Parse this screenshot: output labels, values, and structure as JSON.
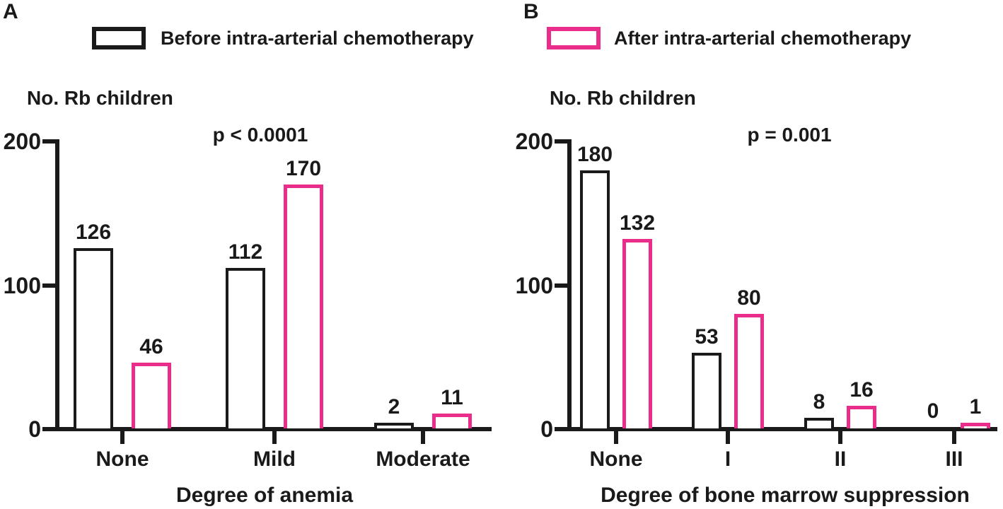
{
  "legend": {
    "items": [
      {
        "label": "Before intra-arterial chemotherapy",
        "color": "#1a1a1a",
        "swatch": "outlined-box"
      },
      {
        "label": "After intra-arterial chemotherapy",
        "color": "#ea2c8a",
        "swatch": "outlined-box"
      }
    ]
  },
  "colors": {
    "before_outline": "#1a1a1a",
    "after_outline": "#ea2c8a",
    "axis": "#1a1a1a",
    "text": "#1a1a1a",
    "background": "#ffffff"
  },
  "chart_data": [
    {
      "type": "bar",
      "panel": "A",
      "ylabel": "No. Rb children",
      "annotation": "p < 0.0001",
      "xlabel": "Degree of anemia",
      "categories": [
        "None",
        "Mild",
        "Moderate"
      ],
      "series": [
        {
          "name": "Before intra-arterial chemotherapy",
          "color": "#1a1a1a",
          "values": [
            126,
            112,
            2
          ]
        },
        {
          "name": "After intra-arterial chemotherapy",
          "color": "#ea2c8a",
          "values": [
            46,
            170,
            11
          ]
        }
      ],
      "ylim": [
        0,
        200
      ],
      "yticks": [
        0,
        100,
        200
      ],
      "grid": false,
      "bar_style": "outline",
      "legend_position": "top"
    },
    {
      "type": "bar",
      "panel": "B",
      "ylabel": "No. Rb children",
      "annotation": "p = 0.001",
      "xlabel": "Degree of bone marrow suppression",
      "categories": [
        "None",
        "I",
        "II",
        "III"
      ],
      "series": [
        {
          "name": "Before intra-arterial chemotherapy",
          "color": "#1a1a1a",
          "values": [
            180,
            53,
            8,
            0
          ]
        },
        {
          "name": "After intra-arterial chemotherapy",
          "color": "#ea2c8a",
          "values": [
            132,
            80,
            16,
            1
          ]
        }
      ],
      "ylim": [
        0,
        200
      ],
      "yticks": [
        0,
        100,
        200
      ],
      "grid": false,
      "bar_style": "outline",
      "legend_position": "top"
    }
  ]
}
